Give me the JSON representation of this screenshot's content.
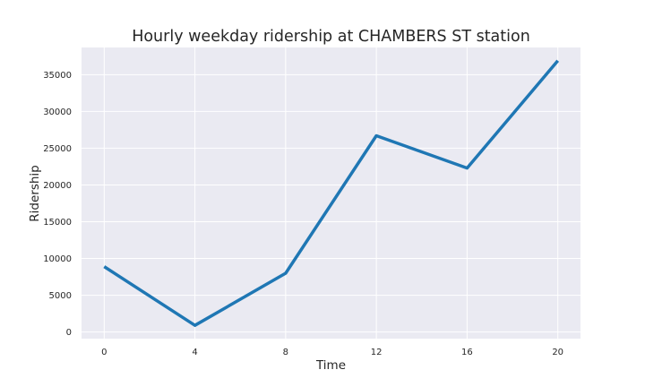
{
  "chart_data": {
    "type": "line",
    "title": "Hourly weekday ridership at CHAMBERS ST station",
    "xlabel": "Time",
    "ylabel": "Ridership",
    "x": [
      0,
      4,
      8,
      12,
      16,
      20
    ],
    "series": [
      {
        "values": [
          8900,
          900,
          8000,
          26700,
          22300,
          36900
        ],
        "color": "#1f77b4"
      }
    ],
    "xticks": [
      "0",
      "4",
      "8",
      "12",
      "16",
      "20"
    ],
    "yticks": [
      "0",
      "5000",
      "10000",
      "15000",
      "20000",
      "25000",
      "30000",
      "35000"
    ],
    "xlim": [
      -1,
      21
    ],
    "ylim": [
      -900,
      38700
    ],
    "grid": true,
    "legend": "none",
    "colors": {
      "plot_background": "#eaeaf2",
      "grid": "#ffffff",
      "line": "#1f77b4",
      "text": "#262626"
    }
  }
}
